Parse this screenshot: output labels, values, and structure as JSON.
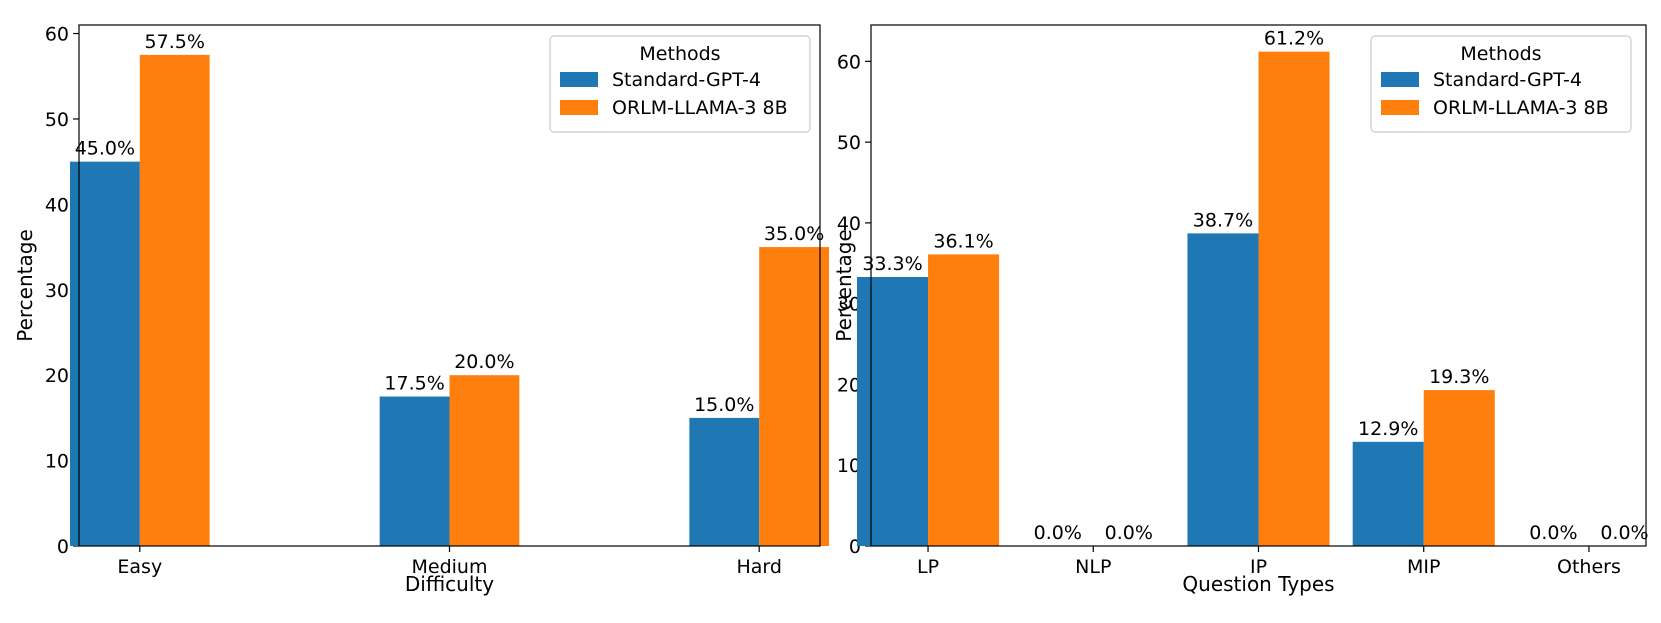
{
  "chart_data": [
    {
      "type": "bar",
      "title": "",
      "xlabel": "Difficulty",
      "ylabel": "Percentage",
      "ylim": [
        0,
        61
      ],
      "yticks": [
        0,
        10,
        20,
        30,
        40,
        50,
        60
      ],
      "categories": [
        "Easy",
        "Medium",
        "Hard"
      ],
      "series": [
        {
          "name": "Standard-GPT-4",
          "color": "#1f77b4",
          "values": [
            45.0,
            17.5,
            15.0
          ],
          "labels": [
            "45.0%",
            "17.5%",
            "15.0%"
          ]
        },
        {
          "name": "ORLM-LLAMA-3 8B",
          "color": "#ff7f0e",
          "values": [
            57.5,
            20.0,
            35.0
          ],
          "labels": [
            "57.5%",
            "20.0%",
            "35.0%"
          ]
        }
      ],
      "legend": {
        "title": "Methods",
        "position": "top-right"
      }
    },
    {
      "type": "bar",
      "title": "",
      "xlabel": "Question Types",
      "ylabel": "Percentage",
      "ylim": [
        0,
        64.5
      ],
      "yticks": [
        0,
        10,
        20,
        30,
        40,
        50,
        60
      ],
      "categories": [
        "LP",
        "NLP",
        "IP",
        "MIP",
        "Others"
      ],
      "series": [
        {
          "name": "Standard-GPT-4",
          "color": "#1f77b4",
          "values": [
            33.3,
            0.0,
            38.7,
            12.9,
            0.0
          ],
          "labels": [
            "33.3%",
            "0.0%",
            "38.7%",
            "12.9%",
            "0.0%"
          ]
        },
        {
          "name": "ORLM-LLAMA-3 8B",
          "color": "#ff7f0e",
          "values": [
            36.1,
            0.0,
            61.2,
            19.3,
            0.0
          ],
          "labels": [
            "36.1%",
            "0.0%",
            "61.2%",
            "19.3%",
            "0.0%"
          ]
        }
      ],
      "legend": {
        "title": "Methods",
        "position": "top-right"
      }
    }
  ]
}
